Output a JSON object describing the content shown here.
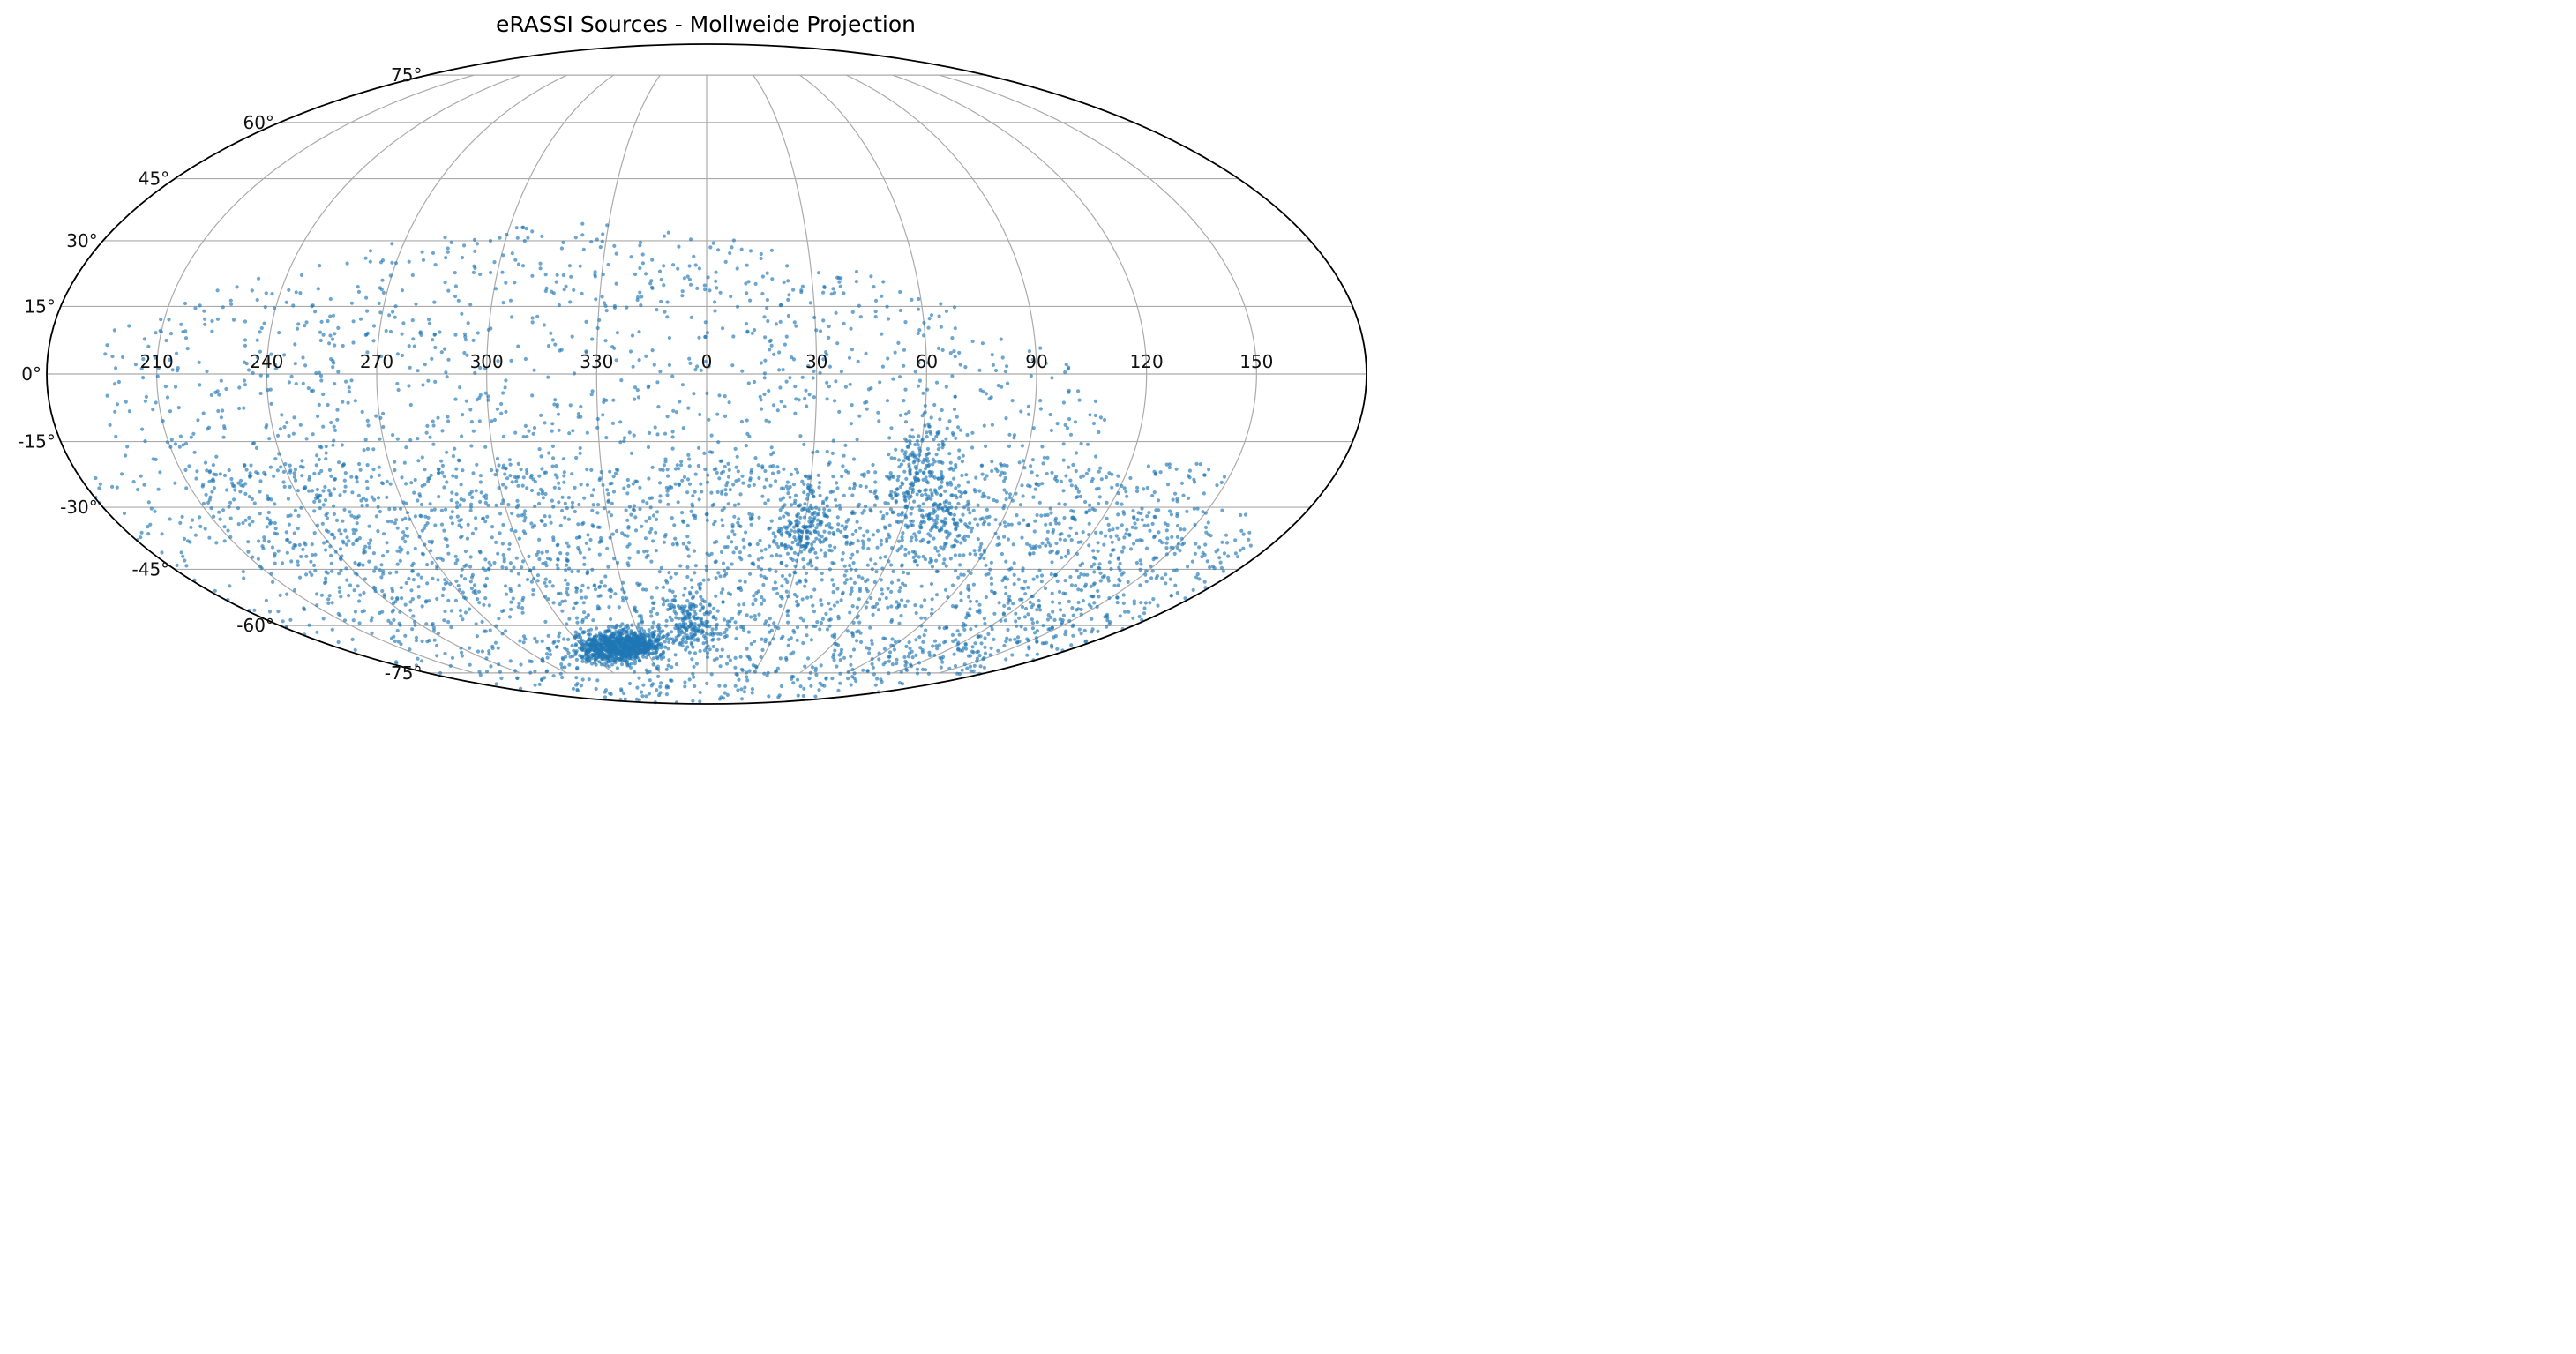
{
  "chart_data": {
    "type": "scatter",
    "title": "eRASSI Sources - Mollweide Projection",
    "projection": "mollweide",
    "grid": true,
    "marker_color": "#1f77b4",
    "marker_alpha": 0.65,
    "x_tick_labels": [
      "210",
      "240",
      "270",
      "300",
      "330",
      "0",
      "30",
      "60",
      "90",
      "120",
      "150"
    ],
    "x_tick_lon": [
      -150,
      -120,
      -90,
      -60,
      -30,
      0,
      30,
      60,
      90,
      120,
      150
    ],
    "y_tick_labels": [
      "-75°",
      "-60°",
      "-45°",
      "-30°",
      "-15°",
      "0°",
      "15°",
      "30°",
      "45°",
      "60°",
      "75°"
    ],
    "y_tick_lat": [
      -75,
      -60,
      -45,
      -30,
      -15,
      0,
      15,
      30,
      45,
      60,
      75
    ],
    "lon_range": [
      -180,
      180
    ],
    "lat_range": [
      -90,
      90
    ],
    "sample_points": [
      {
        "lon": -40,
        "lat": -66
      },
      {
        "lon": -38,
        "lat": -64
      },
      {
        "lon": -45,
        "lat": -63
      },
      {
        "lon": -30,
        "lat": -68
      },
      {
        "lon": -50,
        "lat": -60
      },
      {
        "lon": 10,
        "lat": -60
      },
      {
        "lon": 40,
        "lat": -35
      },
      {
        "lon": 70,
        "lat": -25
      },
      {
        "lon": -120,
        "lat": 0
      },
      {
        "lon": -60,
        "lat": 25
      },
      {
        "lon": -20,
        "lat": 30
      },
      {
        "lon": 20,
        "lat": 10
      }
    ]
  }
}
